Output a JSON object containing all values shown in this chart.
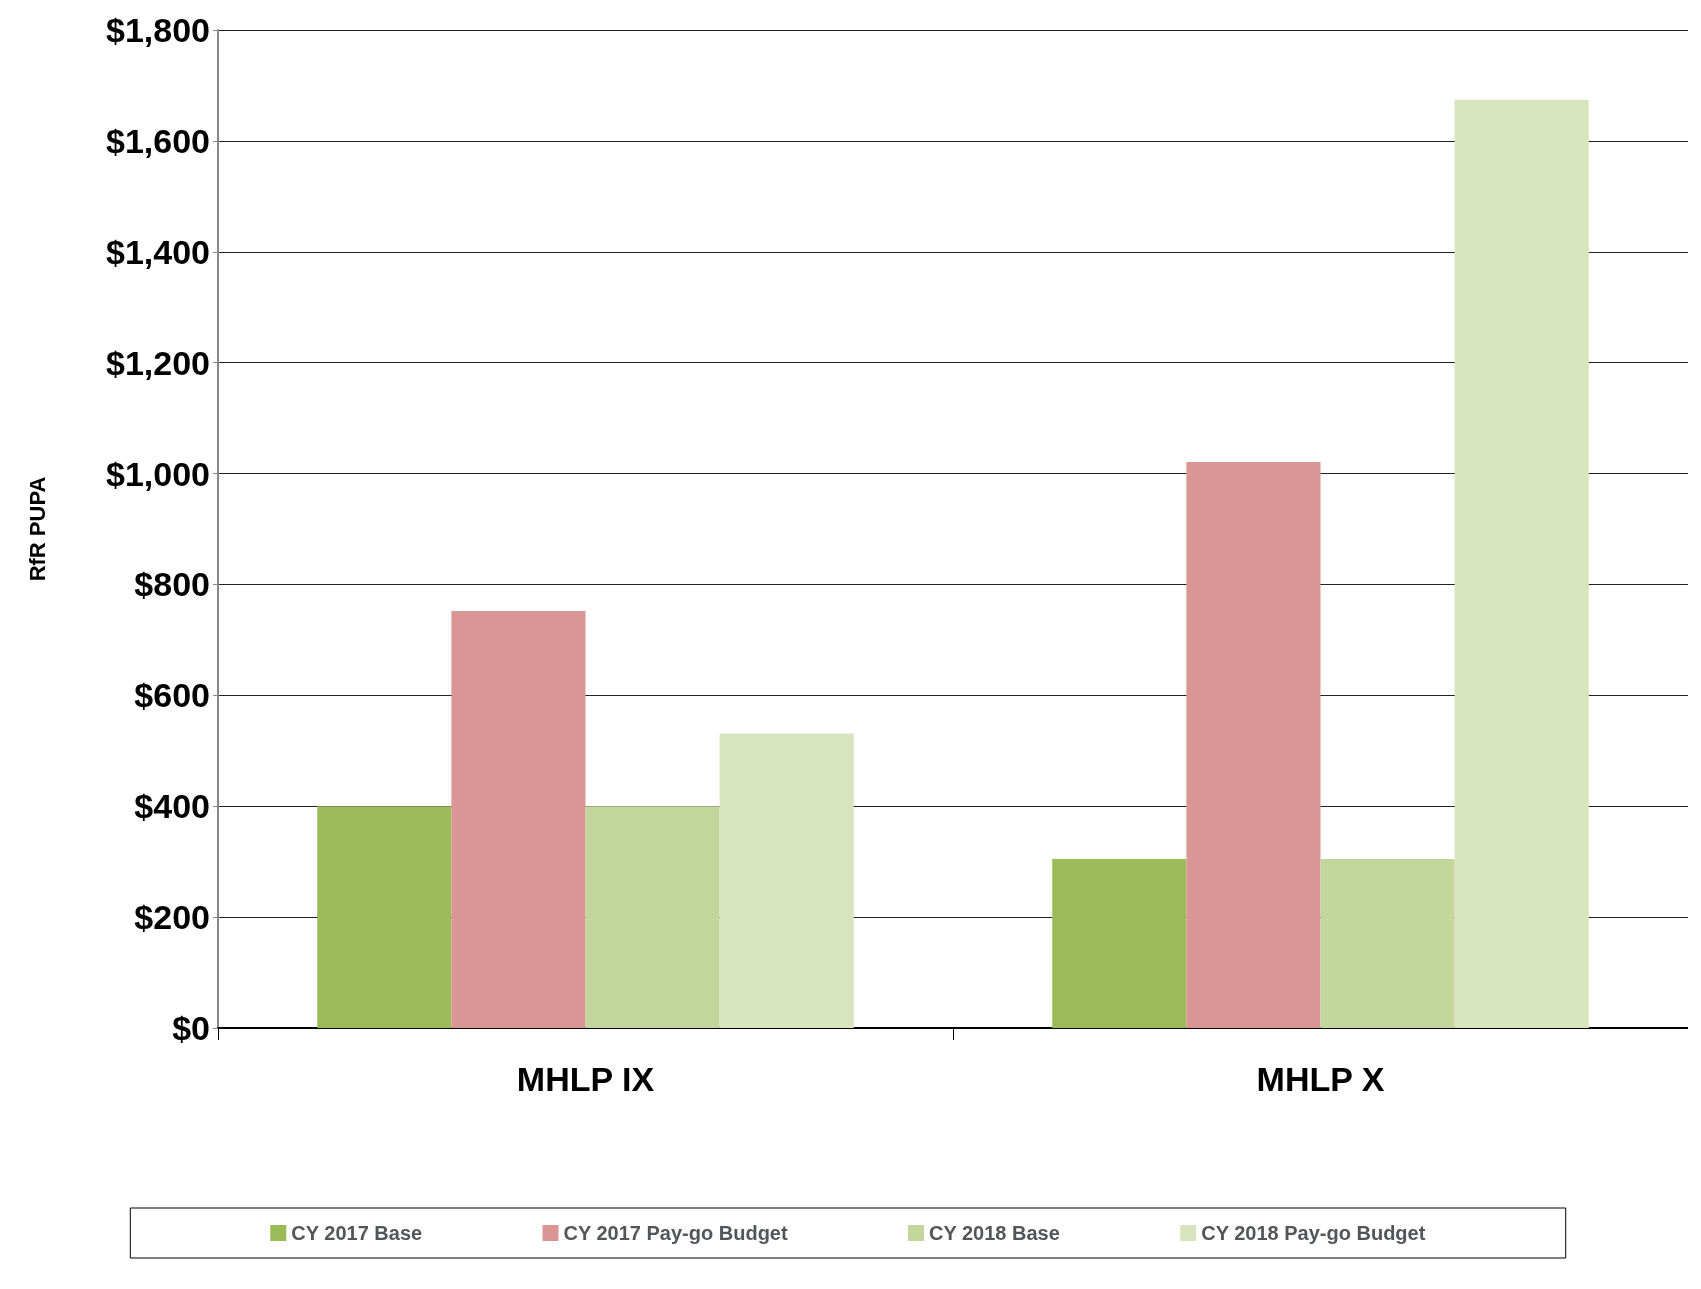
{
  "chart_data": {
    "type": "bar",
    "ylabel": "RfR PUPA",
    "categories": [
      "MHLP IX",
      "MHLP X"
    ],
    "series": [
      {
        "name": "CY 2017 Base",
        "color": "#9bbb59",
        "values": [
          400,
          305
        ]
      },
      {
        "name": "CY 2017 Pay-go Budget",
        "color": "#d99694",
        "values": [
          752,
          1021
        ]
      },
      {
        "name": "CY 2018 Base",
        "color": "#c3d69b",
        "values": [
          400,
          305
        ]
      },
      {
        "name": "CY 2018 Pay-go Budget",
        "color": "#d7e4bd",
        "values": [
          531,
          1674
        ]
      }
    ],
    "ylim": [
      0,
      1800
    ],
    "yticks": [
      {
        "value": 0,
        "label": "$0"
      },
      {
        "value": 200,
        "label": "$200"
      },
      {
        "value": 400,
        "label": "$400"
      },
      {
        "value": 600,
        "label": "$600"
      },
      {
        "value": 800,
        "label": "$800"
      },
      {
        "value": 1000,
        "label": "$1,000"
      },
      {
        "value": 1200,
        "label": "$1,200"
      },
      {
        "value": 1400,
        "label": "$1,400"
      },
      {
        "value": 1600,
        "label": "$1,600"
      },
      {
        "value": 1800,
        "label": "$1,800"
      }
    ],
    "grid": "y",
    "legend": "bottom"
  }
}
